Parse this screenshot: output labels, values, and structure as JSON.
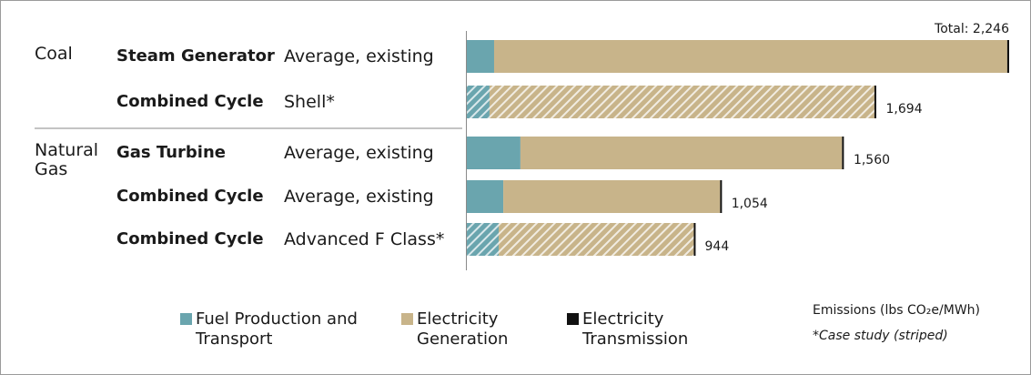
{
  "chart_data": {
    "type": "stacked-barh",
    "groups": [
      "Coal",
      null,
      "Natural Gas",
      null,
      null
    ],
    "categories": [
      "Steam Generator",
      "Combined Cycle",
      "Gas Turbine",
      "Combined Cycle",
      "Combined Cycle"
    ],
    "variants": [
      "Average, existing",
      "Shell*",
      "Average, existing",
      "Average, existing",
      "Advanced F Class*"
    ],
    "striped": [
      false,
      true,
      false,
      false,
      true
    ],
    "series": [
      {
        "name": "Fuel Production and Transport",
        "color": "#6aa5ae",
        "values": [
          113,
          94,
          222,
          151,
          132
        ]
      },
      {
        "name": "Electricity Generation",
        "color": "#c8b48a",
        "values": [
          2125,
          1594,
          1332,
          898,
          808
        ]
      },
      {
        "name": "Electricity Transmission",
        "color": "#111111",
        "values": [
          8,
          6,
          6,
          5,
          4
        ]
      }
    ],
    "totals": [
      2246,
      1694,
      1560,
      1054,
      944
    ],
    "total_labels": [
      "Total: 2,246",
      "1,694",
      "1,560",
      "1,054",
      "944"
    ],
    "xlim": [
      0,
      2246
    ],
    "axis_label": "Emissions (lbs CO₂e/MWh)",
    "note": "*Case study (striped)"
  }
}
